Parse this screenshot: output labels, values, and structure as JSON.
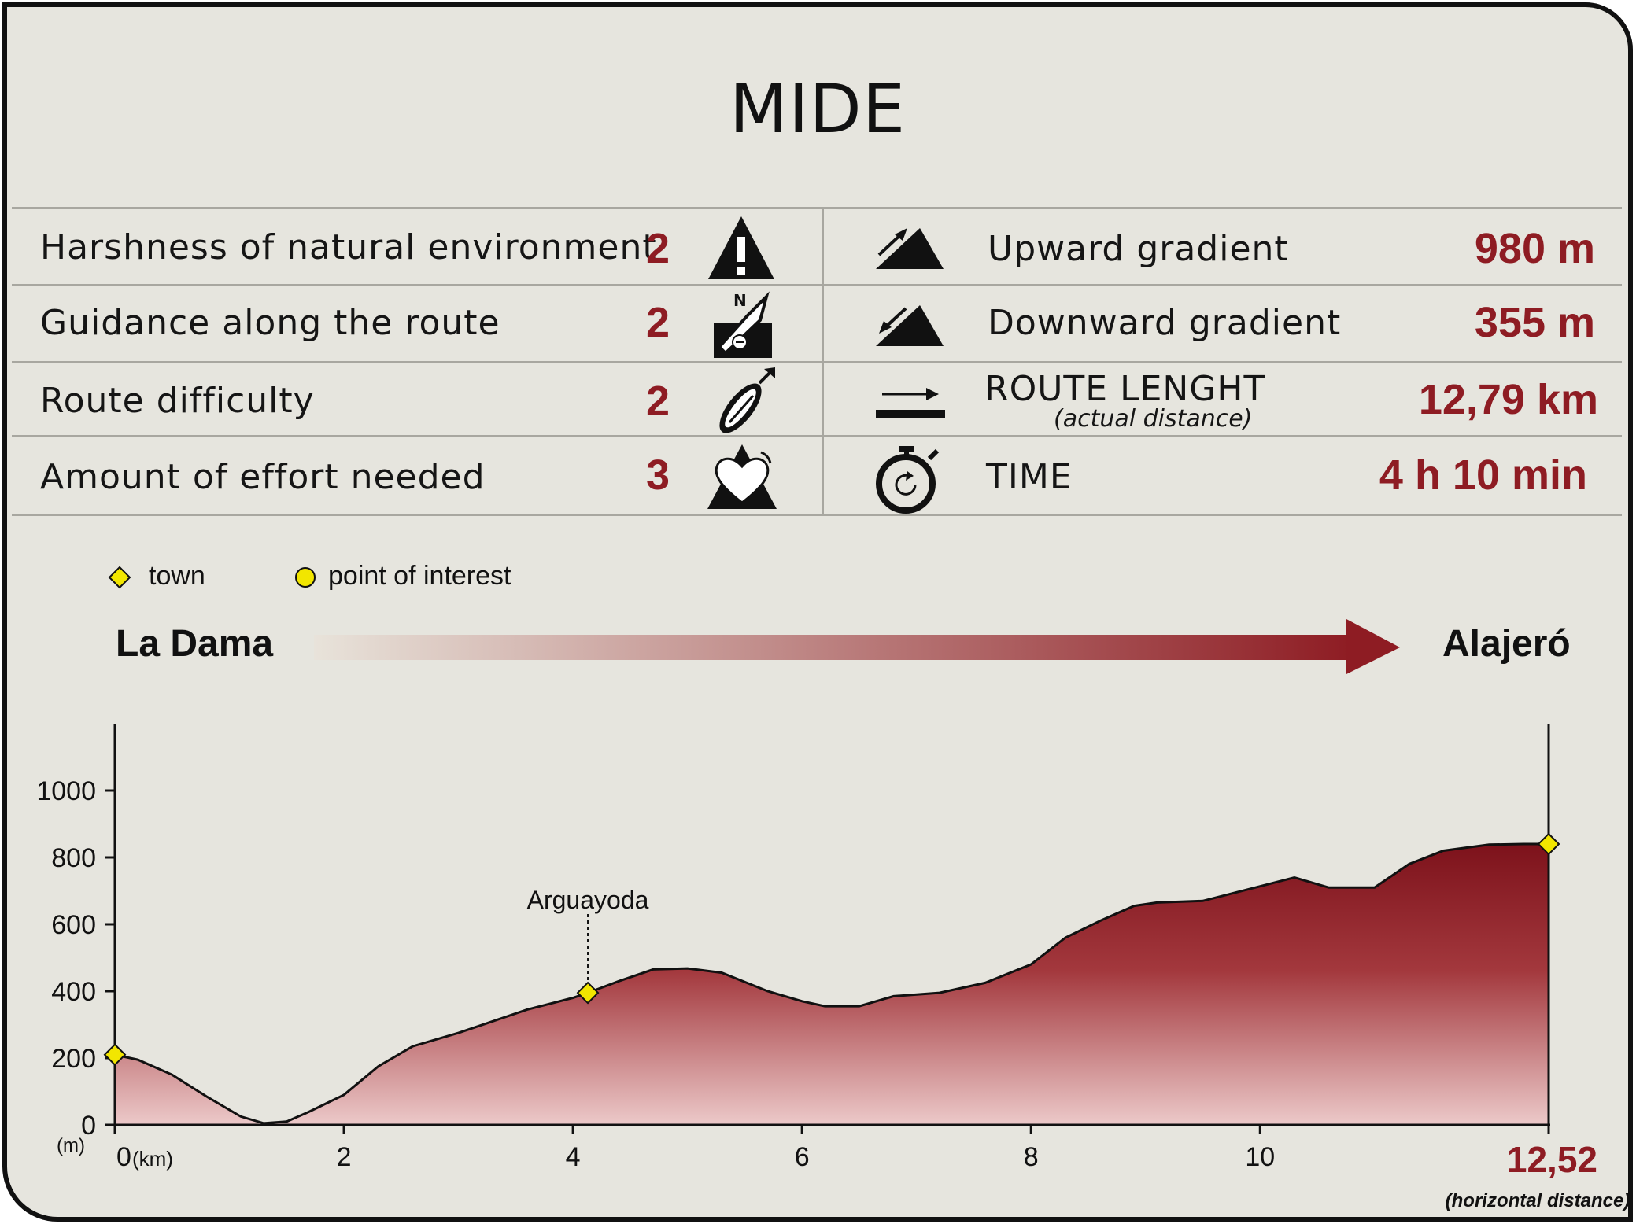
{
  "title": "MIDE",
  "mide": [
    {
      "label": "Harshness of natural environment",
      "value": "2",
      "icon": "warning-triangle-icon"
    },
    {
      "label": "Guidance along the route",
      "value": "2",
      "icon": "compass-map-icon"
    },
    {
      "label": "Route difficulty",
      "value": "2",
      "icon": "footprint-icon"
    },
    {
      "label": "Amount of effort needed",
      "value": "3",
      "icon": "heart-mountain-icon"
    }
  ],
  "stats": [
    {
      "label": "Upward gradient",
      "sublabel": "",
      "value": "980 m",
      "icon": "upward-slope-icon"
    },
    {
      "label": "Downward gradient",
      "sublabel": "",
      "value": "355 m",
      "icon": "downward-slope-icon"
    },
    {
      "label": "ROUTE LENGHT",
      "sublabel": "(actual distance)",
      "value": "12,79 km",
      "icon": "distance-arrow-icon"
    },
    {
      "label": "TIME",
      "sublabel": "",
      "value": "4 h 10 min",
      "icon": "stopwatch-icon"
    }
  ],
  "legend": {
    "town": "town",
    "poi": "point of interest"
  },
  "route": {
    "start": "La Dama",
    "end": "Alajeró"
  },
  "colors": {
    "accent": "#8e1c23",
    "background": "#e6e5de",
    "town_marker": "#f2e600"
  },
  "chart_data": {
    "type": "area",
    "xlabel": "(km)",
    "ylabel": "(m)",
    "x_end_label": "12,52",
    "x_note": "(horizontal distance)",
    "xlim": [
      0,
      12.52
    ],
    "ylim": [
      0,
      1200
    ],
    "x_ticks": [
      0,
      2,
      4,
      6,
      8,
      10
    ],
    "x_tick_labels": [
      "0",
      "2",
      "4",
      "6",
      "8",
      "10"
    ],
    "y_ticks": [
      0,
      200,
      400,
      600,
      800,
      1000
    ],
    "y_tick_labels": [
      "0",
      "200",
      "400",
      "600",
      "800",
      "1000"
    ],
    "x": [
      0,
      0.2,
      0.5,
      0.8,
      1.1,
      1.3,
      1.5,
      1.7,
      2.0,
      2.3,
      2.6,
      3.0,
      3.3,
      3.6,
      4.0,
      4.13,
      4.4,
      4.7,
      5.0,
      5.3,
      5.7,
      6.0,
      6.2,
      6.5,
      6.8,
      7.2,
      7.6,
      8.0,
      8.3,
      8.6,
      8.9,
      9.1,
      9.5,
      9.9,
      10.3,
      10.6,
      11.0,
      11.3,
      11.6,
      12.0,
      12.3,
      12.52
    ],
    "elevation": [
      210,
      195,
      150,
      85,
      25,
      5,
      10,
      40,
      90,
      175,
      235,
      275,
      310,
      345,
      380,
      395,
      430,
      465,
      468,
      455,
      400,
      370,
      355,
      355,
      385,
      395,
      425,
      480,
      560,
      610,
      655,
      665,
      670,
      705,
      740,
      710,
      710,
      780,
      820,
      838,
      840,
      840
    ],
    "points": [
      {
        "x": 0,
        "elevation": 210,
        "kind": "town",
        "label": ""
      },
      {
        "x": 4.13,
        "elevation": 395,
        "kind": "town",
        "label": "Arguayoda"
      },
      {
        "x": 12.52,
        "elevation": 840,
        "kind": "town",
        "label": ""
      }
    ]
  }
}
